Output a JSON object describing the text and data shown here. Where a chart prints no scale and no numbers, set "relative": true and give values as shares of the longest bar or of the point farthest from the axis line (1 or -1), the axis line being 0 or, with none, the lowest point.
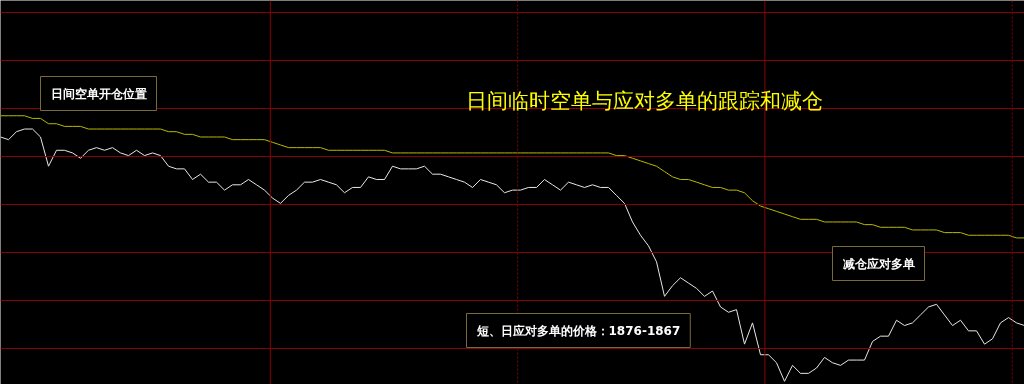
{
  "chart_data": {
    "type": "line",
    "relative": true,
    "title": "日间临时空单与应对多单的跟踪和减仓",
    "annotations": [
      "日间空单开仓位置",
      "短、日应对多单的价格：1876-1867",
      "减仓应对多单"
    ],
    "categories": [
      null,
      null,
      null,
      null,
      null,
      null,
      null,
      null,
      null,
      null,
      null,
      null,
      null,
      null,
      null,
      null,
      null,
      null,
      null,
      null,
      null,
      null,
      null,
      null,
      null,
      null,
      null,
      null,
      null,
      null,
      null,
      null,
      null,
      null,
      null,
      null,
      null,
      null,
      null,
      null,
      null,
      null,
      null,
      null,
      null,
      null,
      null,
      null,
      null,
      null,
      null,
      null,
      null,
      null,
      null,
      null,
      null,
      null,
      null,
      null,
      null,
      null,
      null,
      null,
      null,
      null,
      null,
      null,
      null,
      null,
      null,
      null,
      null,
      null,
      null,
      null,
      null,
      null,
      null,
      null,
      null,
      null,
      null,
      null,
      null,
      null,
      null,
      null,
      null,
      null,
      null,
      null,
      null,
      null,
      null,
      null,
      null,
      null,
      null,
      null,
      null,
      null,
      null,
      null,
      null,
      null,
      null,
      null,
      null,
      null,
      null,
      null,
      null,
      null,
      null,
      null,
      null,
      null,
      null,
      null,
      null,
      null,
      null,
      null,
      null,
      null,
      null,
      null,
      null
    ],
    "grid": true,
    "marker": "none",
    "line_style": "solid",
    "series": [
      {
        "color": "#e6e6e6",
        "values": [
          0.92,
          0.91,
          0.94,
          0.95,
          0.95,
          0.92,
          0.81,
          0.87,
          0.87,
          0.86,
          0.84,
          0.87,
          0.88,
          0.87,
          0.88,
          0.86,
          0.85,
          0.87,
          0.85,
          0.86,
          0.85,
          0.81,
          0.8,
          0.8,
          0.76,
          0.78,
          0.75,
          0.75,
          0.72,
          0.74,
          0.74,
          0.76,
          0.74,
          0.72,
          0.69,
          0.67,
          0.7,
          0.72,
          0.75,
          0.75,
          0.76,
          0.75,
          0.74,
          0.71,
          0.73,
          0.73,
          0.77,
          0.76,
          0.76,
          0.81,
          0.8,
          0.8,
          0.8,
          0.81,
          0.78,
          0.78,
          0.77,
          0.76,
          0.75,
          0.73,
          0.76,
          0.75,
          0.74,
          0.71,
          0.72,
          0.72,
          0.73,
          0.73,
          0.76,
          0.74,
          0.72,
          0.75,
          0.74,
          0.73,
          0.74,
          0.73,
          0.73,
          0.7,
          0.67,
          0.6,
          0.55,
          0.51,
          0.45,
          0.32,
          0.36,
          0.39,
          0.37,
          0.35,
          0.32,
          0.34,
          0.28,
          0.26,
          0.27,
          0.14,
          0.22,
          0.1,
          0.1,
          0.07,
          0,
          0.06,
          0.03,
          0.03,
          0.05,
          0.09,
          0.07,
          0.06,
          0.08,
          0.08,
          0.08,
          0.15,
          0.17,
          0.17,
          0.23,
          0.21,
          0.22,
          0.25,
          0.28,
          0.29,
          0.25,
          0.21,
          0.23,
          0.19,
          0.19,
          0.14,
          0.16,
          0.22,
          0.24,
          0.22,
          0.21
        ]
      },
      {
        "color": "#b8b800",
        "values": [
          1,
          1,
          1,
          1,
          0.99,
          0.99,
          0.97,
          0.97,
          0.96,
          0.96,
          0.96,
          0.95,
          0.95,
          0.95,
          0.95,
          0.95,
          0.95,
          0.95,
          0.95,
          0.95,
          0.95,
          0.94,
          0.94,
          0.93,
          0.93,
          0.92,
          0.92,
          0.92,
          0.92,
          0.91,
          0.91,
          0.91,
          0.91,
          0.91,
          0.9,
          0.89,
          0.88,
          0.88,
          0.88,
          0.88,
          0.88,
          0.87,
          0.87,
          0.87,
          0.87,
          0.87,
          0.87,
          0.87,
          0.87,
          0.86,
          0.86,
          0.86,
          0.86,
          0.86,
          0.86,
          0.86,
          0.86,
          0.86,
          0.86,
          0.86,
          0.86,
          0.86,
          0.86,
          0.86,
          0.86,
          0.86,
          0.86,
          0.86,
          0.86,
          0.86,
          0.86,
          0.86,
          0.86,
          0.86,
          0.86,
          0.86,
          0.86,
          0.85,
          0.85,
          0.84,
          0.83,
          0.82,
          0.81,
          0.79,
          0.77,
          0.76,
          0.76,
          0.75,
          0.74,
          0.73,
          0.73,
          0.72,
          0.72,
          0.71,
          0.68,
          0.66,
          0.65,
          0.64,
          0.63,
          0.62,
          0.61,
          0.61,
          0.61,
          0.6,
          0.6,
          0.6,
          0.6,
          0.6,
          0.59,
          0.59,
          0.58,
          0.58,
          0.58,
          0.58,
          0.57,
          0.57,
          0.57,
          0.57,
          0.56,
          0.56,
          0.56,
          0.55,
          0.55,
          0.55,
          0.55,
          0.55,
          0.55,
          0.54,
          0.54
        ]
      }
    ]
  }
}
